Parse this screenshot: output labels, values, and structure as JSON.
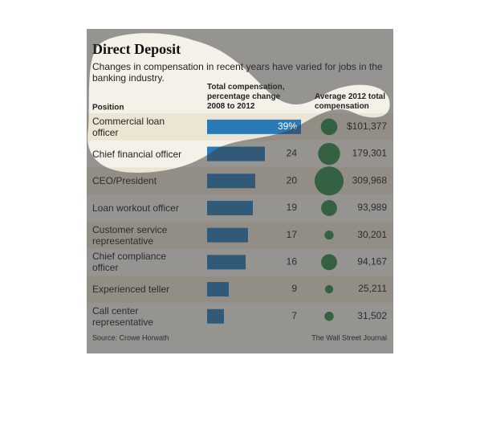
{
  "chart_data": {
    "type": "bar-bubble-table",
    "title": "Direct Deposit",
    "subtitle": "Changes in compensation in recent years have varied for jobs in the banking industry.",
    "category_label": "Position",
    "categories": [
      "Commercial loan officer",
      "Chief financial officer",
      "CEO/President",
      "Loan workout officer",
      "Customer service representative",
      "Chief compliance officer",
      "Experienced teller",
      "Call center representative"
    ],
    "series": [
      {
        "name": "Total compensation, percentage change 2008 to 2012",
        "color": "#2a7ab8",
        "values": [
          39,
          24,
          20,
          19,
          17,
          16,
          9,
          7
        ],
        "value_labels": [
          "39%",
          "24",
          "20",
          "19",
          "17",
          "16",
          "9",
          "7"
        ]
      },
      {
        "name": "Average 2012 total compensation",
        "color": "#2e8b4a",
        "values": [
          101377,
          179301,
          309968,
          93989,
          30201,
          94167,
          25211,
          31502
        ],
        "value_labels": [
          "$101,377",
          "179,301",
          "309,968",
          "93,989",
          "30,201",
          "94,167",
          "25,211",
          "31,502"
        ]
      }
    ],
    "source": "Source: Crowe Horwath",
    "credit": "The Wall Street Journal"
  }
}
